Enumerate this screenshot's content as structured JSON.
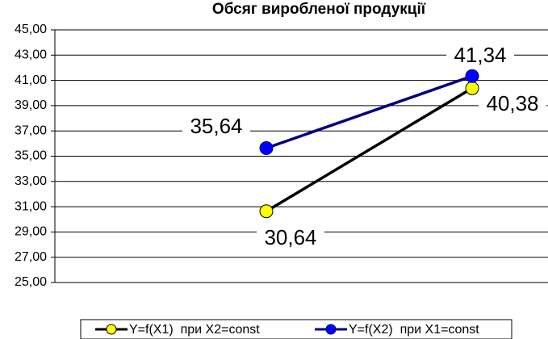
{
  "chart_data": {
    "type": "line",
    "title": "Обсяг виробленої продукції",
    "categories": [
      null,
      null
    ],
    "series": [
      {
        "name": "Y=f(X1)  при X2=const",
        "color": "#000000",
        "marker_color": "#ffff00",
        "values": [
          30.64,
          40.38
        ],
        "value_labels": [
          "30,64",
          "40,38"
        ]
      },
      {
        "name": "Y=f(X2)  при X1=const",
        "color": "#000080",
        "marker_color": "#0000ff",
        "values": [
          35.64,
          41.34
        ],
        "value_labels": [
          "35,64",
          "41,34"
        ]
      }
    ],
    "ylim": [
      25,
      45
    ],
    "yticks": [
      {
        "value": 25,
        "label": "25,00"
      },
      {
        "value": 27,
        "label": "27,00"
      },
      {
        "value": 29,
        "label": "29,00"
      },
      {
        "value": 31,
        "label": "31,00"
      },
      {
        "value": 33,
        "label": "33,00"
      },
      {
        "value": 35,
        "label": "35,00"
      },
      {
        "value": 37,
        "label": "37,00"
      },
      {
        "value": 39,
        "label": "39,00"
      },
      {
        "value": 41,
        "label": "41,00"
      },
      {
        "value": 43,
        "label": "43,00"
      },
      {
        "value": 45,
        "label": "45,00"
      }
    ],
    "grid": true,
    "legend": "bottom"
  }
}
